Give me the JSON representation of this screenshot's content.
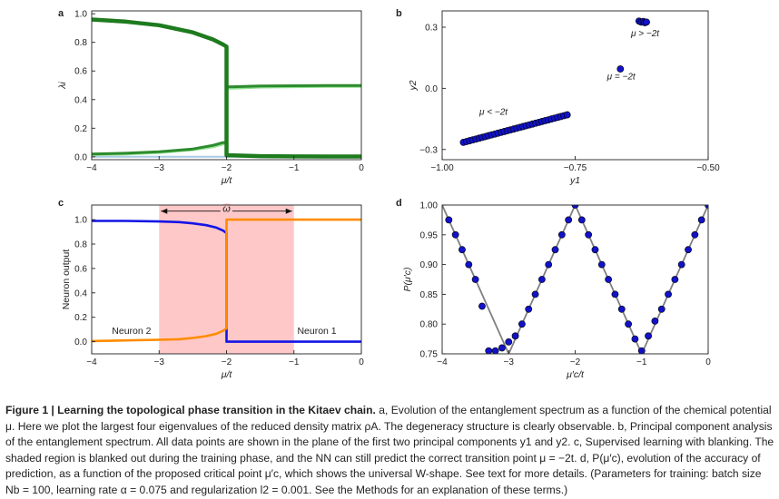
{
  "figure": {
    "caption_label": "Figure 1 | Learning the topological phase transition in the Kitaev chain.",
    "caption_text": " a, Evolution of the entanglement spectrum as a function of the chemical potential μ. Here we plot the largest four eigenvalues of the reduced density matrix ρA. The degeneracy structure is clearly observable. b, Principal component analysis of the entanglement spectrum. All data points are shown in the plane of the first two principal components y1 and y2. c, Supervised learning with blanking. The shaded region is blanked out during the training phase, and the NN can still predict the correct transition point μ = −2t. d, P(μ′c), evolution of the accuracy of prediction, as a function of the proposed critical point μ′c, which shows the universal W-shape. See text for more details. (Parameters for training: batch size Nb = 100, learning rate α = 0.075 and regularization l2 = 0.001. See the Methods for an explanation of these terms.)"
  },
  "chart_data": [
    {
      "panel": "a",
      "type": "line",
      "xlabel": "μ/t",
      "ylabel": "λi",
      "xlim": [
        -4,
        0
      ],
      "ylim": [
        -0.02,
        1.02
      ],
      "xticks": [
        -4,
        -3,
        -2,
        -1,
        0
      ],
      "yticks": [
        0.0,
        0.2,
        0.4,
        0.6,
        0.8,
        1.0
      ],
      "xtick_labels": [
        "−4",
        "−3",
        "−2",
        "−1",
        "0"
      ],
      "ytick_labels": [
        "0.0",
        "0.2",
        "0.4",
        "0.6",
        "0.8",
        "1.0"
      ],
      "series": [
        {
          "color": "#1e7b1e",
          "width": 4.5,
          "x": [
            -4,
            -3.5,
            -3,
            -2.5,
            -2.2,
            -2.05,
            -2.0,
            -2.0,
            -1.9,
            -1.5,
            -1,
            -0.5,
            0
          ],
          "values": [
            0.96,
            0.945,
            0.92,
            0.87,
            0.82,
            0.785,
            0.77,
            0.01,
            0.01,
            0.005,
            0.003,
            0.002,
            0.002
          ]
        },
        {
          "color": "#2e8b2e",
          "width": 3,
          "x": [
            -4,
            -3.5,
            -3,
            -2.5,
            -2.2,
            -2.05,
            -2.0,
            -2.0,
            -1.9,
            -1.5,
            -1,
            -0.5,
            0
          ],
          "values": [
            0.02,
            0.025,
            0.035,
            0.055,
            0.08,
            0.1,
            0.1,
            0.49,
            0.49,
            0.495,
            0.497,
            0.498,
            0.498
          ]
        },
        {
          "color": "#90e090",
          "width": 3,
          "x": [
            -4,
            -3.5,
            -3,
            -2.5,
            -2.2,
            -2.05,
            -2.0,
            -2.0,
            -1.9,
            -1.5,
            -1,
            -0.5,
            0
          ],
          "values": [
            0.015,
            0.02,
            0.03,
            0.05,
            0.07,
            0.09,
            0.1,
            0.48,
            0.48,
            0.487,
            0.49,
            0.492,
            0.492
          ]
        },
        {
          "color": "#a8cce6",
          "width": 2,
          "x": [
            -4,
            -3,
            -2,
            -1,
            0
          ],
          "values": [
            0.0,
            0.0,
            0.0,
            0.0,
            0.0
          ]
        }
      ]
    },
    {
      "panel": "b",
      "type": "scatter",
      "xlabel": "y1",
      "ylabel": "y2",
      "xlim": [
        -1.0,
        -0.5
      ],
      "ylim": [
        -0.35,
        0.38
      ],
      "xticks": [
        -1.0,
        -0.75,
        -0.5
      ],
      "yticks": [
        -0.3,
        0.0,
        0.3
      ],
      "xtick_labels": [
        "−1.00",
        "−0.75",
        "−0.50"
      ],
      "ytick_labels": [
        "−0.3",
        "0.0",
        "0.3"
      ],
      "marker_color": "#1212c8",
      "cluster_points": {
        "x_start": -0.96,
        "x_end": -0.765,
        "y_start": -0.265,
        "y_end": -0.13,
        "count": 34
      },
      "points": [
        {
          "x": -0.665,
          "y": 0.095
        },
        {
          "x": -0.63,
          "y": 0.33
        },
        {
          "x": -0.626,
          "y": 0.325
        },
        {
          "x": -0.622,
          "y": 0.328
        },
        {
          "x": -0.619,
          "y": 0.322
        },
        {
          "x": -0.616,
          "y": 0.325
        }
      ],
      "annotations": [
        {
          "text": "μ < −2t",
          "x": -0.93,
          "y": -0.13
        },
        {
          "text": "μ = −2t",
          "x": -0.69,
          "y": 0.045
        },
        {
          "text": "μ > −2t",
          "x": -0.645,
          "y": 0.255
        }
      ]
    },
    {
      "panel": "c",
      "type": "line",
      "xlabel": "μ/t",
      "ylabel": "Neuron output",
      "xlim": [
        -4,
        0
      ],
      "ylim": [
        -0.1,
        1.12
      ],
      "xticks": [
        -4,
        -3,
        -2,
        -1,
        0
      ],
      "yticks": [
        0.0,
        0.2,
        0.4,
        0.6,
        0.8,
        1.0
      ],
      "xtick_labels": [
        "−4",
        "−3",
        "−2",
        "−1",
        "0"
      ],
      "ytick_labels": [
        "0.0",
        "0.2",
        "0.4",
        "0.6",
        "0.8",
        "1.0"
      ],
      "shaded_region": [
        -3,
        -1
      ],
      "omega_label": "ω",
      "series": [
        {
          "name": "Neuron 1",
          "color": "#1414e6",
          "x": [
            -4,
            -3.5,
            -3,
            -2.7,
            -2.5,
            -2.3,
            -2.15,
            -2.05,
            -2.0,
            -2.0,
            -1.5,
            -1,
            -0.5,
            0
          ],
          "values": [
            0.99,
            0.99,
            0.985,
            0.98,
            0.97,
            0.955,
            0.935,
            0.91,
            0.89,
            0.0,
            0.0,
            0.0,
            0.0,
            0.0
          ]
        },
        {
          "name": "Neuron 2",
          "color": "#ff8c00",
          "x": [
            -4,
            -3.5,
            -3,
            -2.7,
            -2.5,
            -2.3,
            -2.15,
            -2.05,
            -2.0,
            -2.0,
            -1.5,
            -1,
            -0.5,
            0
          ],
          "values": [
            0.005,
            0.01,
            0.015,
            0.02,
            0.03,
            0.045,
            0.065,
            0.09,
            0.11,
            1.0,
            1.0,
            1.0,
            1.0,
            1.0
          ]
        }
      ],
      "labels": [
        {
          "text": "Neuron 2",
          "x": -3.7,
          "y": 0.065,
          "color": "#ff8c00"
        },
        {
          "text": "Neuron 1",
          "x": -0.95,
          "y": 0.065,
          "color": "#1414e6"
        }
      ]
    },
    {
      "panel": "d",
      "type": "line",
      "xlabel": "μ′c/t",
      "ylabel": "P(μ′c)",
      "xlim": [
        -4,
        0
      ],
      "ylim": [
        0.75,
        1.0
      ],
      "xticks": [
        -4,
        -3,
        -2,
        -1,
        0
      ],
      "yticks": [
        0.75,
        0.8,
        0.85,
        0.9,
        0.95,
        1.0
      ],
      "xtick_labels": [
        "−4",
        "−3",
        "−2",
        "−1",
        "0"
      ],
      "ytick_labels": [
        "0.75",
        "0.80",
        "0.85",
        "0.90",
        "0.95",
        "1.00"
      ],
      "line_color": "#808080",
      "marker_color": "#1212c8",
      "line": {
        "x": [
          -4,
          -3,
          -2,
          -1,
          0
        ],
        "values": [
          1.0,
          0.75,
          1.0,
          0.75,
          1.0
        ]
      },
      "points": {
        "x": [
          -3.9,
          -3.8,
          -3.7,
          -3.6,
          -3.5,
          -3.4,
          -3.3,
          -3.2,
          -3.1,
          -3.0,
          -2.9,
          -2.8,
          -2.7,
          -2.6,
          -2.5,
          -2.4,
          -2.3,
          -2.2,
          -2.1,
          -2.0,
          -1.9,
          -1.8,
          -1.7,
          -1.6,
          -1.5,
          -1.4,
          -1.3,
          -1.2,
          -1.1,
          -1.0,
          -0.9,
          -0.8,
          -0.7,
          -0.6,
          -0.5,
          -0.4,
          -0.3,
          -0.2,
          -0.1,
          0.0
        ],
        "values": [
          0.975,
          0.95,
          0.925,
          0.9,
          0.875,
          0.83,
          0.755,
          0.755,
          0.76,
          0.77,
          0.78,
          0.8,
          0.825,
          0.85,
          0.875,
          0.9,
          0.925,
          0.95,
          0.975,
          1.0,
          0.975,
          0.95,
          0.925,
          0.9,
          0.875,
          0.85,
          0.825,
          0.8,
          0.775,
          0.755,
          0.78,
          0.805,
          0.825,
          0.85,
          0.875,
          0.9,
          0.925,
          0.95,
          0.975,
          1.0
        ]
      }
    }
  ]
}
